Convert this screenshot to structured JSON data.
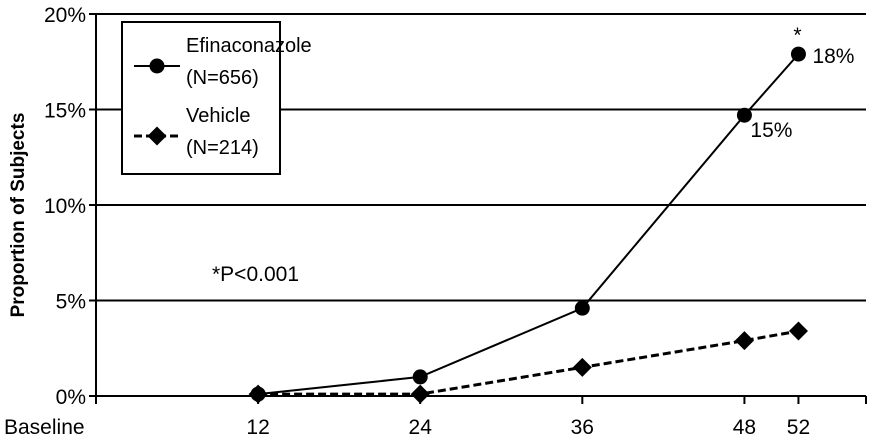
{
  "chart_data": {
    "type": "line",
    "title": "",
    "xlabel": "",
    "ylabel": "Proportion of Subjects",
    "x_tick_labels": [
      "Baseline",
      "12",
      "24",
      "36",
      "48",
      "52"
    ],
    "x_ticks": [
      0,
      12,
      24,
      36,
      48,
      52
    ],
    "xlim": [
      0,
      57
    ],
    "y_tick_labels": [
      "0%",
      "5%",
      "10%",
      "15%",
      "20%"
    ],
    "y_ticks": [
      0,
      5,
      10,
      15,
      20
    ],
    "ylim": [
      0,
      20
    ],
    "grid": "horizontal",
    "legend_position": "top-left",
    "series": [
      {
        "name": "Efinaconazole",
        "legend_sub": "(N=656)",
        "color": "#000000",
        "line_style": "solid",
        "marker": "circle",
        "x": [
          12,
          24,
          36,
          48,
          52
        ],
        "y": [
          0.1,
          1.0,
          4.6,
          14.7,
          17.9
        ]
      },
      {
        "name": "Vehicle",
        "legend_sub": "(N=214)",
        "color": "#000000",
        "line_style": "dashed",
        "marker": "diamond",
        "x": [
          12,
          24,
          36,
          48,
          52
        ],
        "y": [
          0.1,
          0.1,
          1.5,
          2.9,
          3.4
        ]
      }
    ],
    "data_labels": [
      {
        "series": 0,
        "index": 4,
        "text": "18%"
      },
      {
        "series": 0,
        "index": 3,
        "text": "15%"
      }
    ],
    "significance_marker": "*",
    "annotation": "*P<0.001"
  }
}
